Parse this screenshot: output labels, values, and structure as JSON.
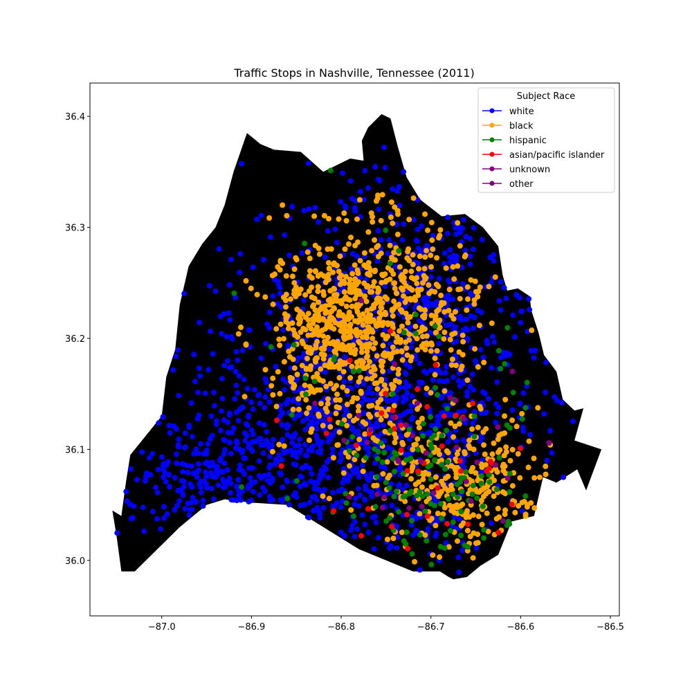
{
  "chart_data": {
    "type": "scatter",
    "title": "Traffic Stops in Nashville, Tennessee (2011)",
    "xlabel": "",
    "ylabel": "",
    "xlim": [
      -87.08,
      -86.49
    ],
    "ylim": [
      35.95,
      36.43
    ],
    "x_ticks": [
      -87.0,
      -86.9,
      -86.8,
      -86.7,
      -86.6,
      -86.5
    ],
    "x_tick_labels": [
      "−87.0",
      "−86.9",
      "−86.8",
      "−86.7",
      "−86.6",
      "−86.5"
    ],
    "y_ticks": [
      36.0,
      36.1,
      36.2,
      36.3,
      36.4
    ],
    "y_tick_labels": [
      "36.0",
      "36.1",
      "36.2",
      "36.3",
      "36.4"
    ],
    "grid": false,
    "background_map": {
      "name": "Nashville / Davidson County boundary",
      "fill_color": "#000000",
      "boundary": [
        [
          -86.905,
          36.385
        ],
        [
          -86.89,
          36.375
        ],
        [
          -86.875,
          36.37
        ],
        [
          -86.845,
          36.368
        ],
        [
          -86.82,
          36.35
        ],
        [
          -86.79,
          36.362
        ],
        [
          -86.775,
          36.36
        ],
        [
          -86.777,
          36.378
        ],
        [
          -86.77,
          36.39
        ],
        [
          -86.755,
          36.402
        ],
        [
          -86.745,
          36.398
        ],
        [
          -86.737,
          36.373
        ],
        [
          -86.727,
          36.345
        ],
        [
          -86.712,
          36.325
        ],
        [
          -86.688,
          36.31
        ],
        [
          -86.662,
          36.312
        ],
        [
          -86.642,
          36.3
        ],
        [
          -86.625,
          36.283
        ],
        [
          -86.62,
          36.257
        ],
        [
          -86.615,
          36.243
        ],
        [
          -86.603,
          36.245
        ],
        [
          -86.59,
          36.238
        ],
        [
          -86.588,
          36.225
        ],
        [
          -86.58,
          36.205
        ],
        [
          -86.574,
          36.185
        ],
        [
          -86.56,
          36.17
        ],
        [
          -86.553,
          36.145
        ],
        [
          -86.54,
          36.135
        ],
        [
          -86.53,
          36.137
        ],
        [
          -86.54,
          36.108
        ],
        [
          -86.51,
          36.1
        ],
        [
          -86.527,
          36.063
        ],
        [
          -86.537,
          36.082
        ],
        [
          -86.56,
          36.07
        ],
        [
          -86.575,
          36.075
        ],
        [
          -86.585,
          36.04
        ],
        [
          -86.61,
          36.035
        ],
        [
          -86.625,
          36.005
        ],
        [
          -86.645,
          35.995
        ],
        [
          -86.66,
          35.985
        ],
        [
          -86.675,
          35.983
        ],
        [
          -86.68,
          35.985
        ],
        [
          -86.69,
          35.99
        ],
        [
          -86.72,
          35.99
        ],
        [
          -86.75,
          36.0
        ],
        [
          -86.78,
          36.01
        ],
        [
          -86.8,
          36.02
        ],
        [
          -86.83,
          36.035
        ],
        [
          -86.86,
          36.05
        ],
        [
          -86.9,
          36.052
        ],
        [
          -86.93,
          36.055
        ],
        [
          -86.95,
          36.05
        ],
        [
          -86.98,
          36.03
        ],
        [
          -87.005,
          36.01
        ],
        [
          -87.03,
          35.99
        ],
        [
          -87.045,
          35.99
        ],
        [
          -87.05,
          36.02
        ],
        [
          -87.055,
          36.045
        ],
        [
          -87.045,
          36.04
        ],
        [
          -87.04,
          36.07
        ],
        [
          -87.035,
          36.095
        ],
        [
          -87.0,
          36.13
        ],
        [
          -86.995,
          36.165
        ],
        [
          -86.985,
          36.19
        ],
        [
          -86.98,
          36.23
        ],
        [
          -86.97,
          36.265
        ],
        [
          -86.955,
          36.285
        ],
        [
          -86.94,
          36.3
        ],
        [
          -86.93,
          36.32
        ],
        [
          -86.92,
          36.35
        ]
      ]
    },
    "series": [
      {
        "name": "white",
        "color": "#0000ff"
      },
      {
        "name": "black",
        "color": "#ffa500"
      },
      {
        "name": "hispanic",
        "color": "#008000"
      },
      {
        "name": "asian/pacific islander",
        "color": "#ff0000"
      },
      {
        "name": "unknown",
        "color": "#800080"
      },
      {
        "name": "other",
        "color": "#800080"
      }
    ],
    "legend": {
      "title": "Subject Race",
      "location": "upper right",
      "entries": [
        "white",
        "black",
        "hispanic",
        "asian/pacific islander",
        "unknown",
        "other"
      ]
    }
  }
}
